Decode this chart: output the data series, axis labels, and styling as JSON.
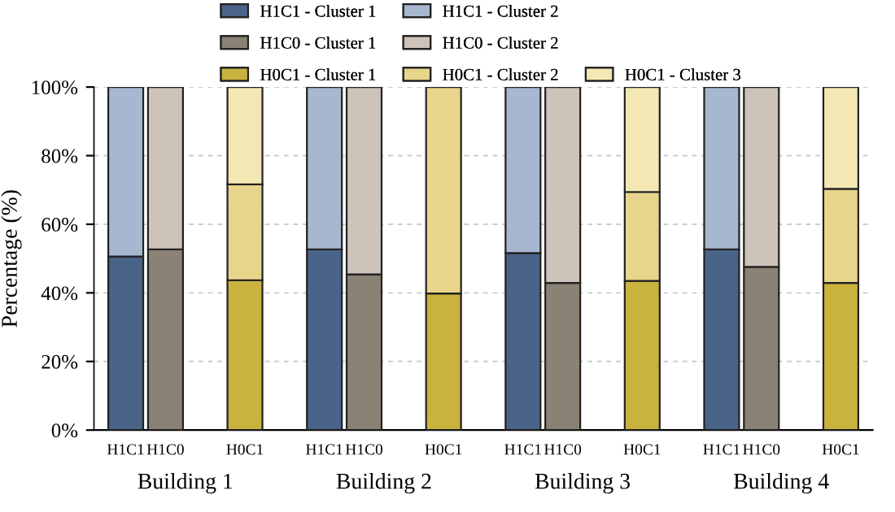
{
  "chart_data": {
    "type": "bar",
    "stacked": true,
    "categories": [
      "H1C1",
      "H1C0",
      null,
      "H0C1",
      null,
      "H1C1",
      "H1C0",
      null,
      "H0C1",
      null,
      "H1C1",
      "H1C0",
      null,
      "H0C1",
      null,
      "H1C1",
      "H1C0",
      null,
      "H0C1"
    ],
    "series": [
      {
        "name": "H1C1 - Cluster 1",
        "color": "#4a6389",
        "values": [
          50.6,
          null,
          null,
          null,
          null,
          52.7,
          null,
          null,
          null,
          null,
          51.6,
          null,
          null,
          null,
          null,
          52.7,
          null,
          null,
          null
        ]
      },
      {
        "name": "H1C1 - Cluster 2",
        "color": "#a7b7d0",
        "values": [
          49.4,
          null,
          null,
          null,
          null,
          47.3,
          null,
          null,
          null,
          null,
          48.4,
          null,
          null,
          null,
          null,
          47.3,
          null,
          null,
          null
        ]
      },
      {
        "name": "H1C0 - Cluster 1",
        "color": "#8a8274",
        "values": [
          null,
          52.7,
          null,
          null,
          null,
          null,
          45.4,
          null,
          null,
          null,
          null,
          42.9,
          null,
          null,
          null,
          null,
          47.6,
          null,
          null
        ]
      },
      {
        "name": "H1C0 - Cluster 2",
        "color": "#cdc3b8",
        "values": [
          null,
          47.3,
          null,
          null,
          null,
          null,
          54.6,
          null,
          null,
          null,
          null,
          57.1,
          null,
          null,
          null,
          null,
          52.4,
          null,
          null
        ]
      },
      {
        "name": "H0C1 - Cluster 1",
        "color": "#c9b33e",
        "values": [
          null,
          null,
          null,
          43.7,
          null,
          null,
          null,
          null,
          39.8,
          null,
          null,
          null,
          null,
          43.5,
          null,
          null,
          null,
          null,
          42.9
        ]
      },
      {
        "name": "H0C1 - Cluster 2",
        "color": "#e8d58c",
        "values": [
          null,
          null,
          null,
          27.9,
          null,
          null,
          null,
          null,
          60.2,
          null,
          null,
          null,
          null,
          25.9,
          null,
          null,
          null,
          null,
          27.4
        ]
      },
      {
        "name": "H0C1 - Cluster 3",
        "color": "#f3e8b4",
        "values": [
          null,
          null,
          null,
          28.4,
          null,
          null,
          null,
          null,
          null,
          null,
          null,
          null,
          null,
          30.6,
          null,
          null,
          null,
          null,
          29.7
        ]
      }
    ],
    "ylabel": "Percentage (%)",
    "ylim": [
      0,
      100
    ],
    "yticks": [
      {
        "value": 0,
        "label": "0%"
      },
      {
        "value": 20,
        "label": "20%"
      },
      {
        "value": 40,
        "label": "40%"
      },
      {
        "value": 60,
        "label": "60%"
      },
      {
        "value": 80,
        "label": "80%"
      },
      {
        "value": 100,
        "label": "100%"
      }
    ],
    "annotations": [
      "Building 1",
      "Building 2",
      "Building 3",
      "Building 4"
    ],
    "grid": "y",
    "legend": "top"
  }
}
